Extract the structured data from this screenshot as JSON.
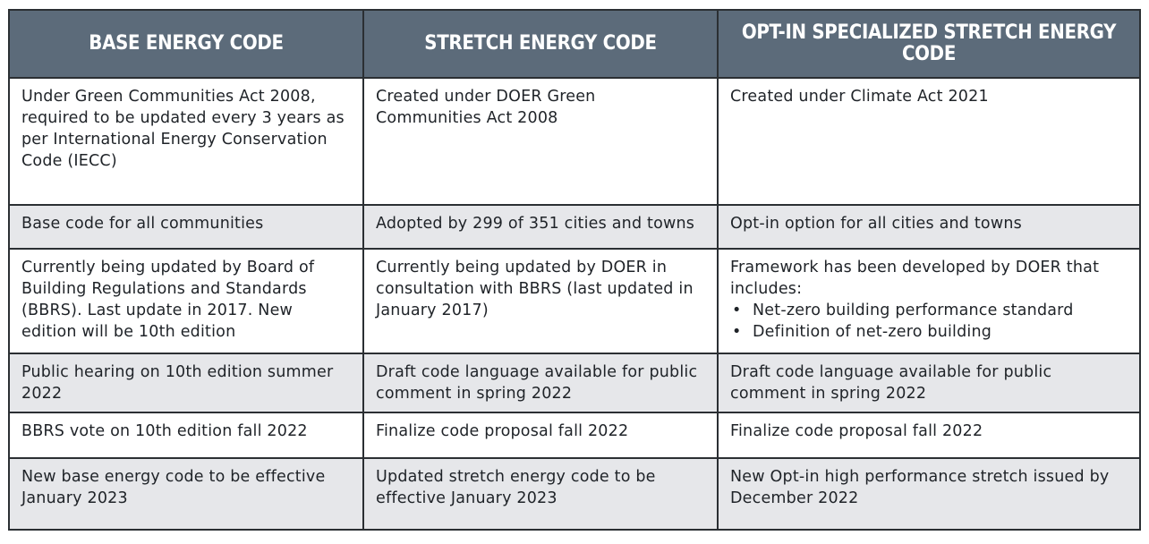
{
  "headers": [
    "BASE ENERGY CODE",
    "STRETCH ENERGY CODE",
    "OPT-IN  SPECIALIZED STRETCH ENERGY CODE"
  ],
  "rows": [
    {
      "base": "Under Green Communities Act 2008, required to be updated every 3 years as per International Energy Conservation Code (IECC)",
      "stretch": "Created under DOER Green Communities Act 2008",
      "optin": "Created under Climate Act 2021"
    },
    {
      "base": "Base code for all communities",
      "stretch": "Adopted by 299 of 351 cities and towns",
      "optin": "Opt-in option for all cities and towns"
    },
    {
      "base": "Currently being updated by  Board of Building Regulations and Standards (BBRS). Last update in 2017. New edition will be 10th edition",
      "stretch": "Currently being updated by DOER in consultation with BBRS (last updated in January 2017)",
      "optin": "Framework has been developed by DOER  that includes:",
      "optin_bullets": [
        "Net-zero building performance standard",
        "Definition of net-zero building"
      ]
    },
    {
      "base": "Public hearing on 10th edition summer 2022",
      "stretch": "Draft code language available for public comment in spring 2022",
      "optin": "Draft code language available for public comment in spring 2022"
    },
    {
      "base": "BBRS vote on 10th edition fall 2022",
      "stretch": "Finalize code proposal fall 2022",
      "optin": "Finalize code proposal fall 2022"
    },
    {
      "base": "New base energy code to be effective January 2023",
      "stretch": "Updated stretch energy code to be effective January 2023",
      "optin": "New Opt-in high performance stretch issued by December 2022"
    }
  ],
  "colors": {
    "header_bg": "#5c6b7a",
    "header_text": "#ffffff",
    "shaded_row": "#e6e7ea",
    "border": "#2b2f33"
  }
}
